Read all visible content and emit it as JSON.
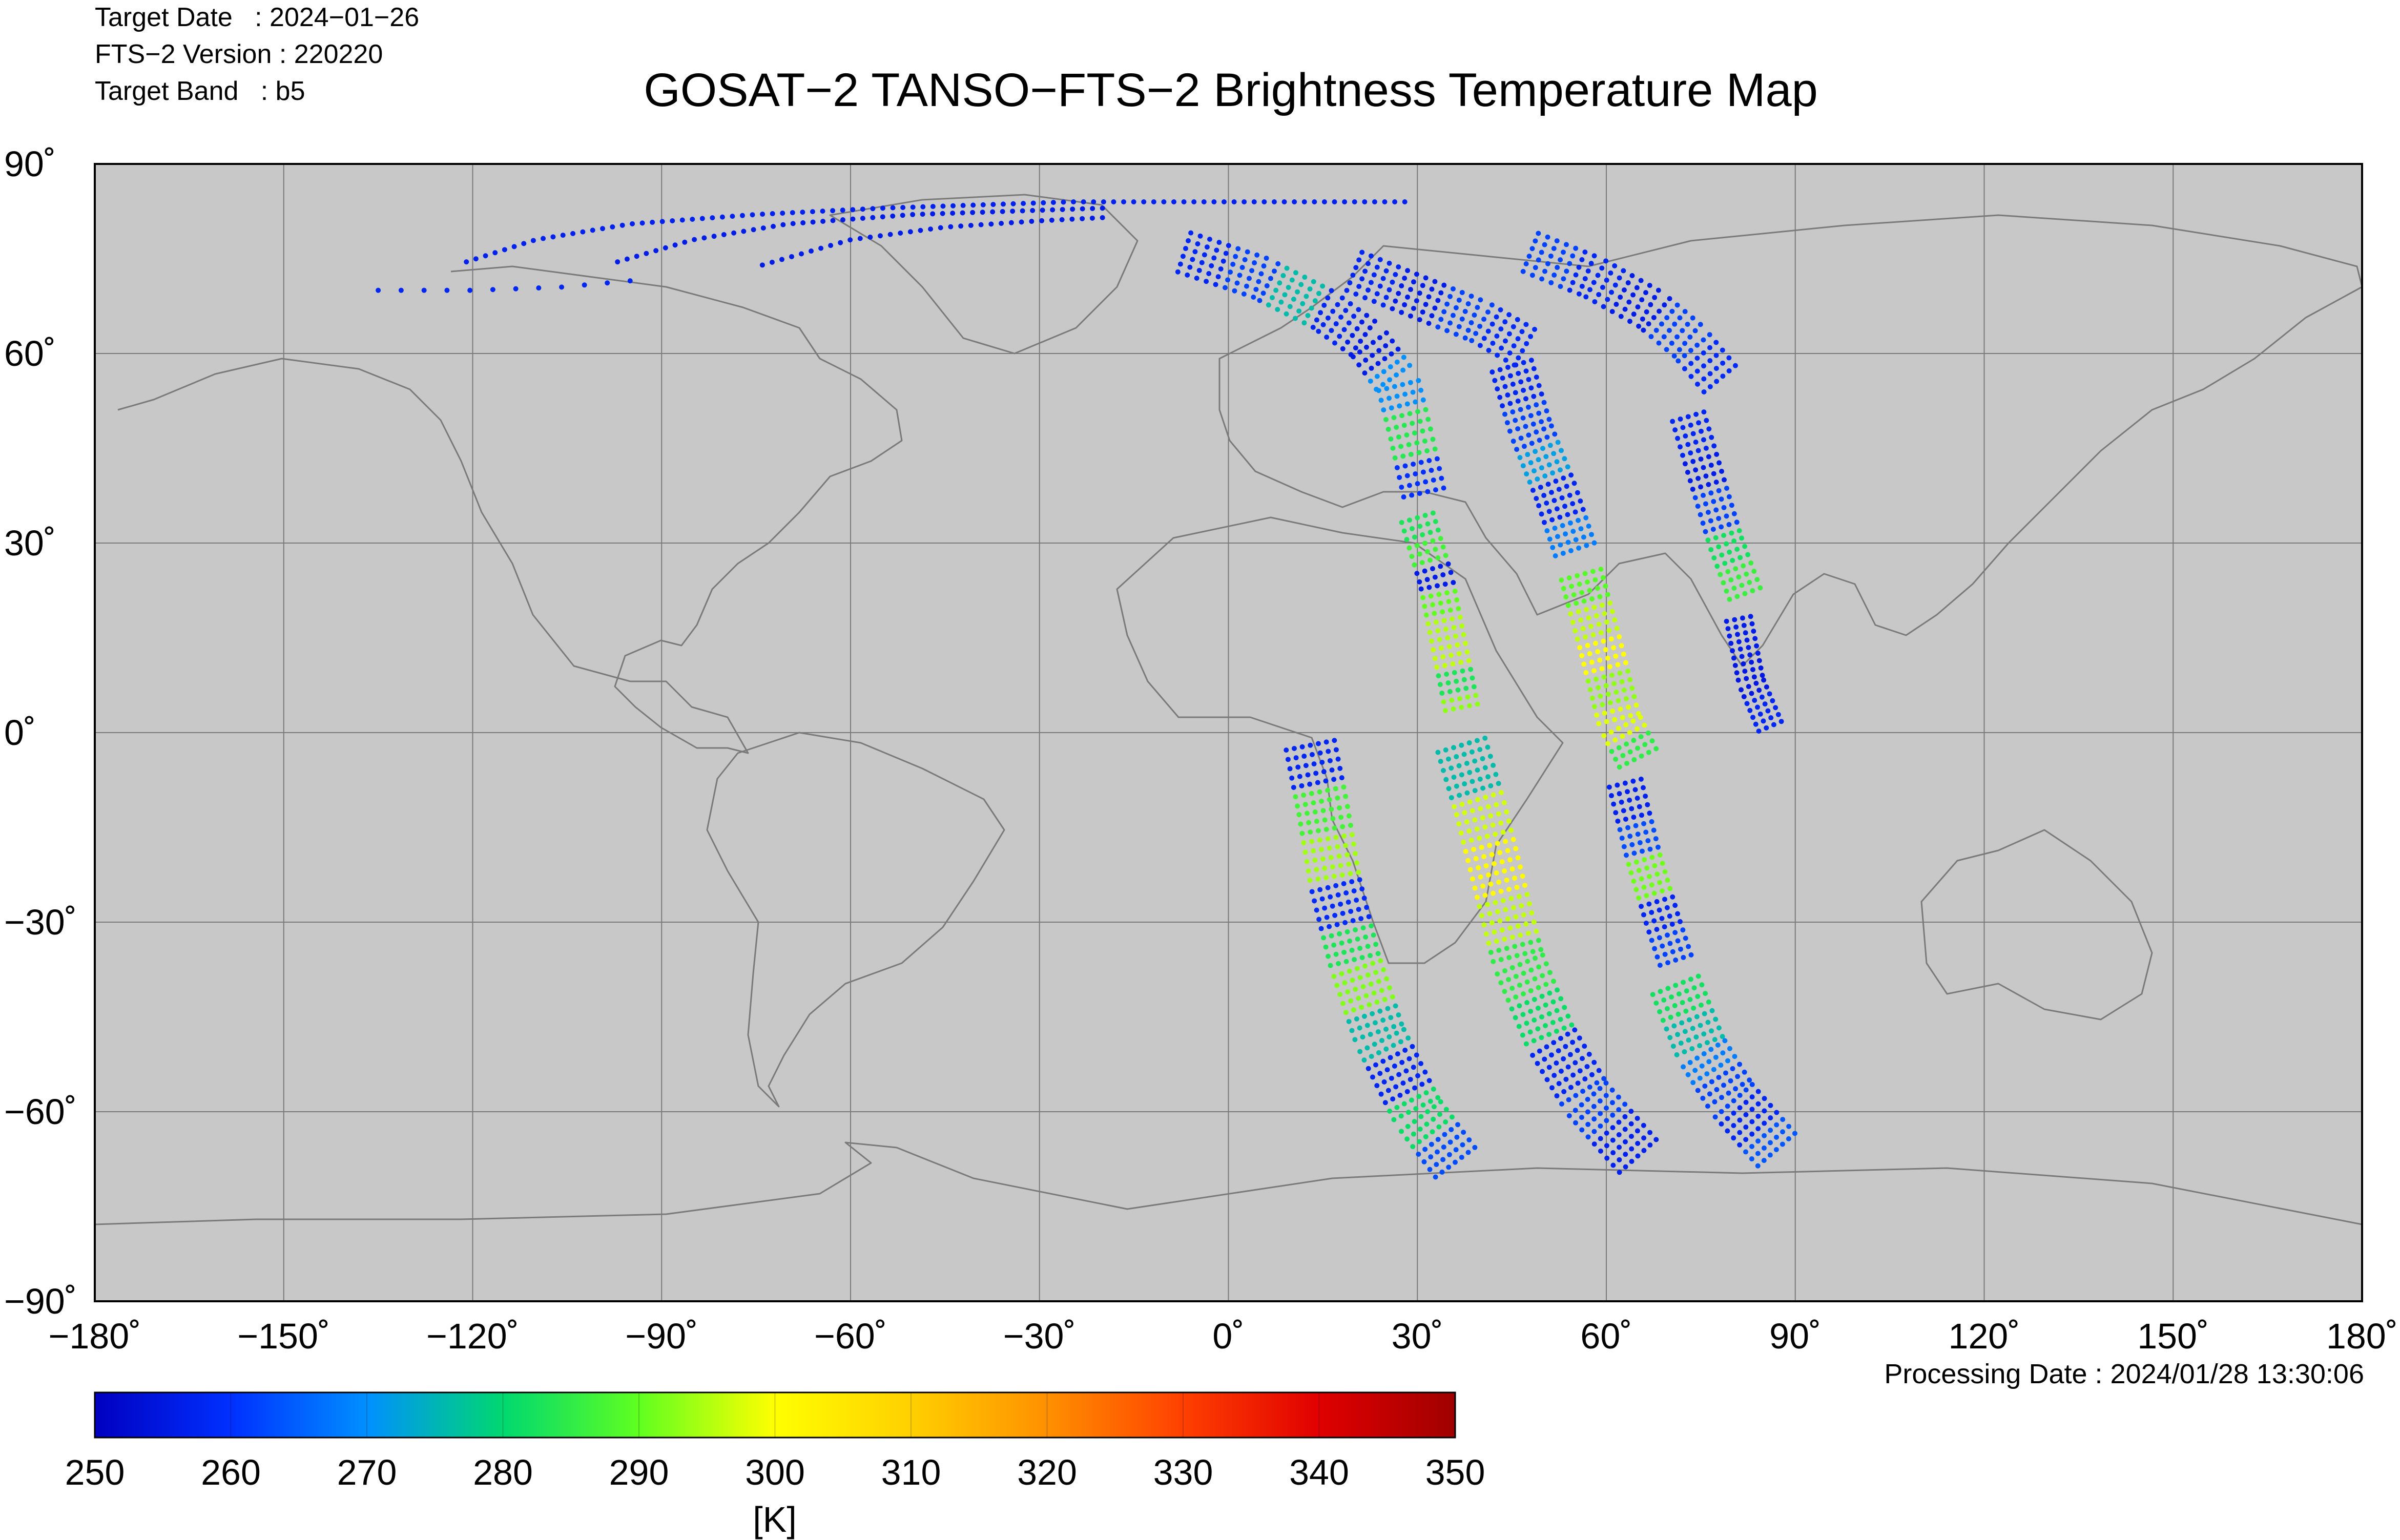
{
  "header": {
    "target_date": "Target Date   : 2024−01−26",
    "fts_version": "FTS−2 Version : 220220",
    "target_band": "Target Band   : b5",
    "title": "GOSAT−2 TANSO−FTS−2 Brightness Temperature Map",
    "processing_date": "Processing Date : 2024/01/28 13:30:06"
  },
  "chart_data": {
    "type": "scatter",
    "title": "GOSAT−2 TANSO−FTS−2 Brightness Temperature Map",
    "xlim": [
      -180,
      180
    ],
    "ylim": [
      -90,
      90
    ],
    "x_ticks": [
      -180,
      -150,
      -120,
      -90,
      -60,
      -30,
      0,
      30,
      60,
      90,
      120,
      150,
      180
    ],
    "x_tick_labels": [
      "−180˚",
      "−150˚",
      "−120˚",
      "−90˚",
      "−60˚",
      "−30˚",
      "0˚",
      "30˚",
      "60˚",
      "90˚",
      "120˚",
      "150˚",
      "180˚"
    ],
    "y_ticks": [
      90,
      60,
      30,
      0,
      -30,
      -60,
      -90
    ],
    "y_tick_labels": [
      "90˚",
      "60˚",
      "30˚",
      "0˚",
      "−30˚",
      "−60˚",
      "−90˚"
    ],
    "grid": true,
    "background_color": "#c8c8c8",
    "colorbar": {
      "label": "[K]",
      "range": [
        250,
        350
      ],
      "ticks": [
        250,
        260,
        270,
        280,
        290,
        300,
        310,
        320,
        330,
        340,
        350
      ],
      "tick_labels": [
        "250",
        "260",
        "270",
        "280",
        "290",
        "300",
        "310",
        "320",
        "330",
        "340",
        "350"
      ],
      "colormap": "jet"
    },
    "tracks": [
      {
        "points": [
          [
            -121,
            74.5
          ],
          [
            -110,
            78
          ],
          [
            -95,
            80.5
          ],
          [
            -75,
            82
          ],
          [
            -55,
            83
          ],
          [
            -40,
            83.5
          ],
          [
            -25,
            84
          ],
          [
            -5,
            84
          ],
          [
            10,
            84
          ],
          [
            28,
            84
          ]
        ],
        "values": [
          257
        ],
        "rows": 1,
        "spacing": 1.6
      },
      {
        "points": [
          [
            -97,
            74.5
          ],
          [
            -85,
            78
          ],
          [
            -70,
            80.5
          ],
          [
            -50,
            82
          ],
          [
            -35,
            82.5
          ],
          [
            -20,
            83
          ]
        ],
        "values": [
          256
        ],
        "rows": 1,
        "spacing": 1.6
      },
      {
        "points": [
          [
            -74,
            74
          ],
          [
            -60,
            78
          ],
          [
            -45,
            80
          ],
          [
            -30,
            81
          ],
          [
            -20,
            81.5
          ]
        ],
        "values": [
          256
        ],
        "rows": 1,
        "spacing": 1.6
      },
      {
        "points": [
          [
            -135,
            70
          ],
          [
            -120,
            70
          ],
          [
            -106,
            70.5
          ],
          [
            -95,
            71.5
          ]
        ],
        "values": [
          258
        ],
        "rows": 1,
        "spacing": 3.5
      },
      {
        "points": [
          [
            -7,
            76
          ],
          [
            5,
            72
          ],
          [
            15,
            67
          ],
          [
            22,
            62
          ],
          [
            27,
            55
          ],
          [
            29,
            47
          ],
          [
            31,
            38
          ]
        ],
        "values": [
          258,
          262,
          276,
          258,
          256,
          270,
          284,
          260
        ],
        "rows": 6,
        "spacing": 1.6
      },
      {
        "points": [
          [
            30,
            34
          ],
          [
            33,
            24
          ],
          [
            35,
            14
          ],
          [
            37,
            4
          ]
        ],
        "values": [
          283,
          287,
          256,
          290,
          295,
          296,
          283,
          293
        ],
        "rows": 5,
        "spacing": 1.4
      },
      {
        "points": [
          [
            13,
            -2
          ],
          [
            15,
            -12
          ],
          [
            17,
            -24
          ],
          [
            20,
            -36
          ],
          [
            24,
            -48
          ],
          [
            30,
            -60
          ],
          [
            36,
            -68
          ]
        ],
        "values": [
          258,
          287,
          294,
          259,
          283,
          292,
          276,
          258,
          281,
          263
        ],
        "rows": 7,
        "spacing": 1.5
      },
      {
        "points": [
          [
            20,
            73
          ],
          [
            30,
            69
          ],
          [
            40,
            65
          ],
          [
            47,
            61
          ]
        ],
        "values": [
          258,
          256,
          262,
          259
        ],
        "rows": 6,
        "spacing": 1.6
      },
      {
        "points": [
          [
            45,
            58
          ],
          [
            48,
            48
          ],
          [
            52,
            38
          ],
          [
            55,
            29
          ]
        ],
        "values": [
          258,
          262,
          272,
          258,
          268
        ],
        "rows": 6,
        "spacing": 1.4
      },
      {
        "points": [
          [
            56,
            25
          ],
          [
            59,
            14
          ],
          [
            62,
            2
          ],
          [
            65,
            -4
          ]
        ],
        "values": [
          289,
          296,
          300,
          293,
          298,
          285
        ],
        "rows": 6,
        "spacing": 1.4
      },
      {
        "points": [
          [
            37,
            -2
          ],
          [
            40,
            -12
          ],
          [
            43,
            -24
          ],
          [
            46,
            -36
          ],
          [
            51,
            -48
          ],
          [
            57,
            -58
          ],
          [
            65,
            -67
          ]
        ],
        "values": [
          276,
          297,
          301,
          296,
          285,
          281,
          258,
          262,
          257
        ],
        "rows": 7,
        "spacing": 1.5
      },
      {
        "points": [
          [
            48,
            76
          ],
          [
            58,
            72
          ],
          [
            67,
            67
          ],
          [
            73,
            62
          ],
          [
            78,
            56
          ]
        ],
        "values": [
          262,
          258,
          256,
          262,
          259
        ],
        "rows": 6,
        "spacing": 1.6
      },
      {
        "points": [
          [
            73,
            50
          ],
          [
            76,
            40
          ],
          [
            79,
            30
          ],
          [
            82,
            22
          ]
        ],
        "values": [
          258,
          256,
          262,
          282,
          286
        ],
        "rows": 5,
        "spacing": 1.4
      },
      {
        "points": [
          [
            81,
            18
          ],
          [
            83,
            8
          ],
          [
            86,
            1
          ]
        ],
        "values": [
          256,
          255,
          258
        ],
        "rows": 4,
        "spacing": 1.2
      },
      {
        "points": [
          [
            63,
            -8
          ],
          [
            66,
            -20
          ],
          [
            69,
            -30
          ],
          [
            71,
            -36
          ]
        ],
        "values": [
          257,
          263,
          291,
          258,
          262
        ],
        "rows": 5,
        "spacing": 1.4
      },
      {
        "points": [
          [
            71,
            -40
          ],
          [
            75,
            -50
          ],
          [
            80,
            -58
          ],
          [
            87,
            -66
          ]
        ],
        "values": [
          282,
          276,
          268,
          262,
          258,
          264
        ],
        "rows": 7,
        "spacing": 1.5
      }
    ]
  }
}
